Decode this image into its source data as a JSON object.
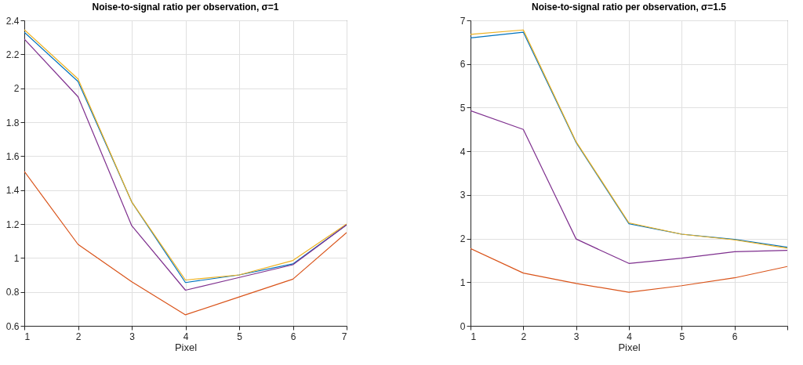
{
  "chart_data": [
    {
      "type": "line",
      "title": "Noise-to-signal ratio per observation, σ=1",
      "xlabel": "Pixel",
      "x": [
        1,
        2,
        3,
        4,
        5,
        6,
        7
      ],
      "xlim": [
        1,
        7
      ],
      "xticks": [
        1,
        2,
        3,
        4,
        5,
        6,
        7
      ],
      "ylim": [
        0.6,
        2.4
      ],
      "yticks": [
        0.6,
        0.8,
        1,
        1.2,
        1.4,
        1.6,
        1.8,
        2,
        2.2,
        2.4
      ],
      "grid": true,
      "legend": false,
      "series": [
        {
          "color": "#0072bd",
          "values": [
            2.33,
            2.04,
            1.33,
            0.855,
            0.9,
            0.965,
            1.195
          ]
        },
        {
          "color": "#d95319",
          "values": [
            1.51,
            1.08,
            0.86,
            0.665,
            0.77,
            0.875,
            1.15
          ]
        },
        {
          "color": "#edb120",
          "values": [
            2.345,
            2.055,
            1.33,
            0.87,
            0.9,
            0.985,
            1.2
          ]
        },
        {
          "color": "#7e2f8e",
          "values": [
            2.29,
            1.95,
            1.19,
            0.81,
            0.885,
            0.96,
            1.195
          ]
        }
      ]
    },
    {
      "type": "line",
      "title": "Noise-to-signal ratio per observation, σ=1.5",
      "xlabel": "Pixel",
      "x": [
        1,
        2,
        3,
        4,
        5,
        6,
        7
      ],
      "xlim": [
        1,
        7
      ],
      "xticks": [
        1,
        2,
        3,
        4,
        5,
        6,
        {
          "value": 7,
          "label": null
        }
      ],
      "ylim": [
        0,
        7
      ],
      "yticks": [
        0,
        1,
        2,
        3,
        4,
        5,
        6,
        7
      ],
      "grid": true,
      "legend": false,
      "series": [
        {
          "color": "#0072bd",
          "values": [
            6.6,
            6.73,
            4.2,
            2.34,
            2.1,
            1.98,
            1.8
          ]
        },
        {
          "color": "#d95319",
          "values": [
            1.77,
            1.21,
            0.97,
            0.77,
            0.92,
            1.1,
            1.36
          ]
        },
        {
          "color": "#edb120",
          "values": [
            6.68,
            6.78,
            4.22,
            2.36,
            2.1,
            1.97,
            1.78
          ]
        },
        {
          "color": "#7e2f8e",
          "values": [
            4.93,
            4.5,
            1.99,
            1.43,
            1.55,
            1.7,
            1.73
          ]
        }
      ]
    }
  ]
}
